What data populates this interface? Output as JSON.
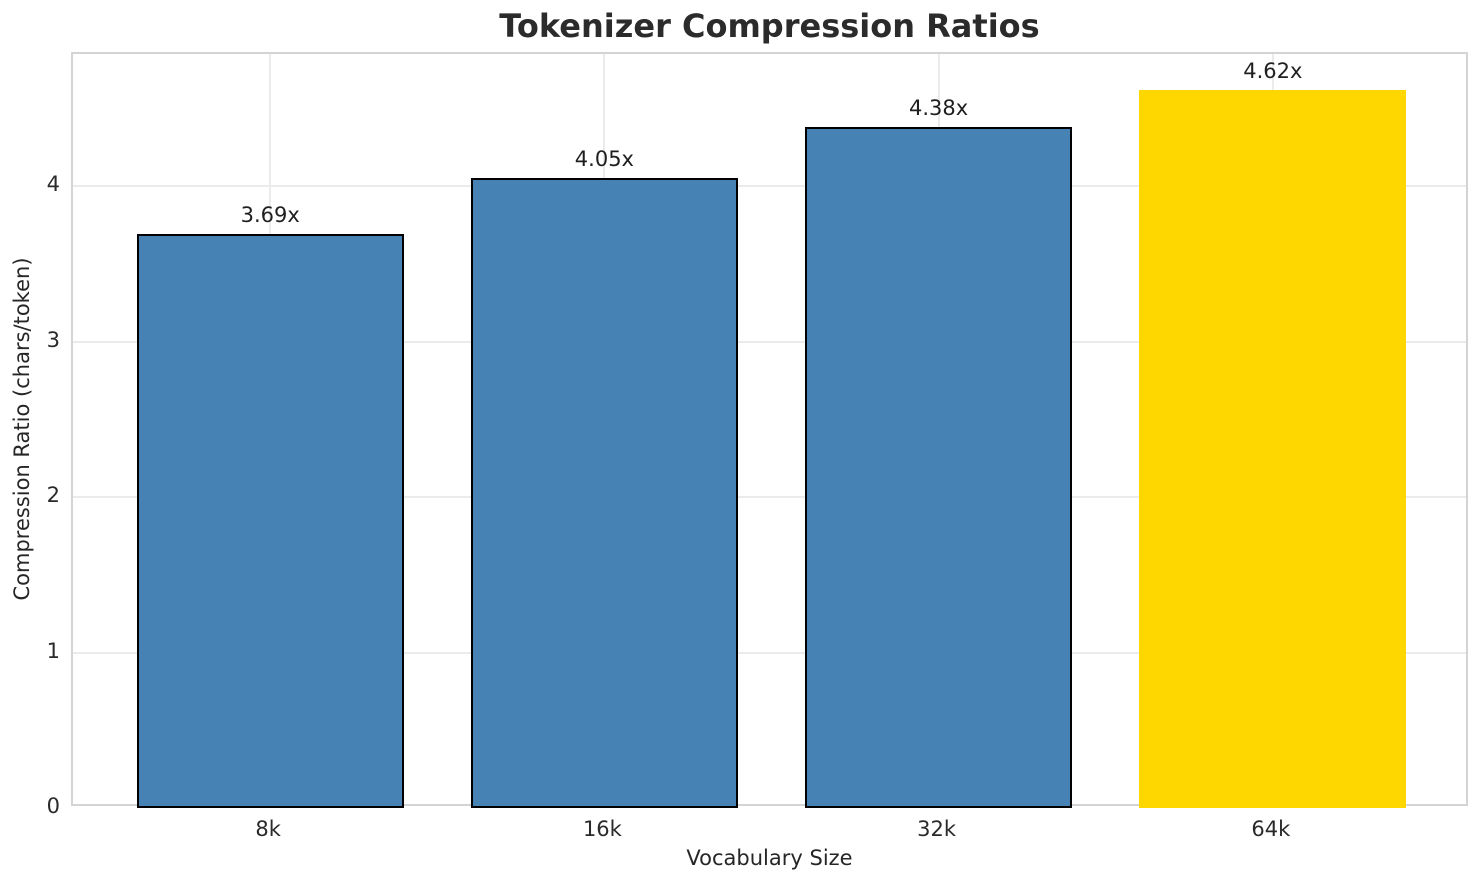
{
  "chart_data": {
    "type": "bar",
    "title": "Tokenizer Compression Ratios",
    "xlabel": "Vocabulary Size",
    "ylabel": "Compression Ratio (chars/token)",
    "categories": [
      "8k",
      "16k",
      "32k",
      "64k"
    ],
    "values": [
      3.69,
      4.05,
      4.38,
      4.62
    ],
    "bar_labels": [
      "3.69x",
      "4.05x",
      "4.38x",
      "4.62x"
    ],
    "yticks": [
      0,
      1,
      2,
      3,
      4
    ],
    "ylim": [
      0,
      4.85
    ],
    "grid": "on",
    "legend": "none",
    "bar_color": "#4682B4",
    "highlight_color": "#FFD700",
    "highlight_index": 3,
    "bar_edge_color": "#000000"
  }
}
